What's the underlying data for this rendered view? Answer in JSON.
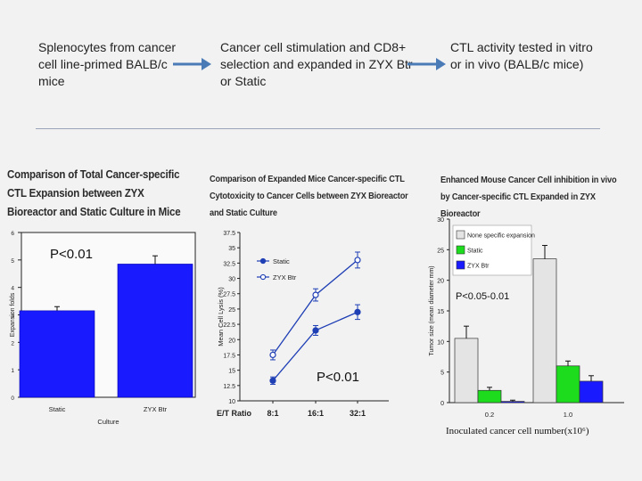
{
  "workflow": {
    "step1": "Splenocytes from cancer cell line-primed BALB/c mice",
    "step2": "Cancer cell stimulation and CD8+ selection and expanded in ZYX Btr or Static",
    "step3": "CTL activity tested in vitro or in vivo (BALB/c mice)",
    "arrow_color": "#4a7bb7"
  },
  "chart_data": [
    {
      "type": "bar",
      "title": "Comparison of Total Cancer-specific CTL Expansion between ZYX Bioreactor and Static Culture in Mice",
      "xlabel": "Culture",
      "ylabel": "Expansion folds",
      "categories": [
        "Static",
        "ZYX Btr"
      ],
      "values": [
        3.15,
        4.85
      ],
      "errors": [
        0.15,
        0.3
      ],
      "ylim": [
        0,
        6
      ],
      "yticks": [
        "0",
        "1",
        "2",
        "3",
        "4",
        "5",
        "6"
      ],
      "bar_color": "#1a1aff",
      "annotation": "P<0.01"
    },
    {
      "type": "line",
      "title": "Comparison of Expanded Mice Cancer-specific CTL Cytotoxicity to Cancer Cells between ZYX Bioreactor and Static Culture",
      "xlabel": "E/T Ratio",
      "ylabel": "Mean Cell Lysis (%)",
      "categories": [
        "8:1",
        "16:1",
        "32:1"
      ],
      "series": [
        {
          "name": "Static",
          "values": [
            13.3,
            21.5,
            24.5
          ],
          "errors": [
            0.6,
            0.8,
            1.2
          ],
          "marker": "filled"
        },
        {
          "name": "ZYX Btr",
          "values": [
            17.5,
            27.3,
            33.0
          ],
          "errors": [
            0.8,
            1.0,
            1.3
          ],
          "marker": "open"
        }
      ],
      "ylim": [
        10,
        37.5
      ],
      "yticks": [
        "10",
        "12.5",
        "15",
        "17.5",
        "20",
        "22.5",
        "25",
        "27.5",
        "30",
        "32.5",
        "35",
        "37.5"
      ],
      "line_color": "#1f3fb5",
      "annotation": "P<0.01"
    },
    {
      "type": "bar",
      "title": "Enhanced Mouse Cancer Cell inhibition in vivo by Cancer-specific CTL Expanded in ZYX Bioreactor",
      "xlabel": "Inoculated cancer cell number(x10⁶)",
      "ylabel": "Tumor size (mean diameter mm)",
      "categories": [
        "0.2",
        "1.0"
      ],
      "series": [
        {
          "name": "None specific expansion",
          "values": [
            10.5,
            23.5
          ],
          "errors": [
            2.0,
            2.2
          ],
          "color": "#e4e4e4"
        },
        {
          "name": "Static",
          "values": [
            2.0,
            6.0
          ],
          "errors": [
            0.5,
            0.8
          ],
          "color": "#1ddc1d"
        },
        {
          "name": "ZYX Btr",
          "values": [
            0.2,
            3.5
          ],
          "errors": [
            0.2,
            0.9
          ],
          "color": "#1a1aff"
        }
      ],
      "ylim": [
        0,
        30
      ],
      "yticks": [
        "0",
        "5",
        "10",
        "15",
        "20",
        "25",
        "30"
      ],
      "annotation": "P<0.05-0.01"
    }
  ]
}
